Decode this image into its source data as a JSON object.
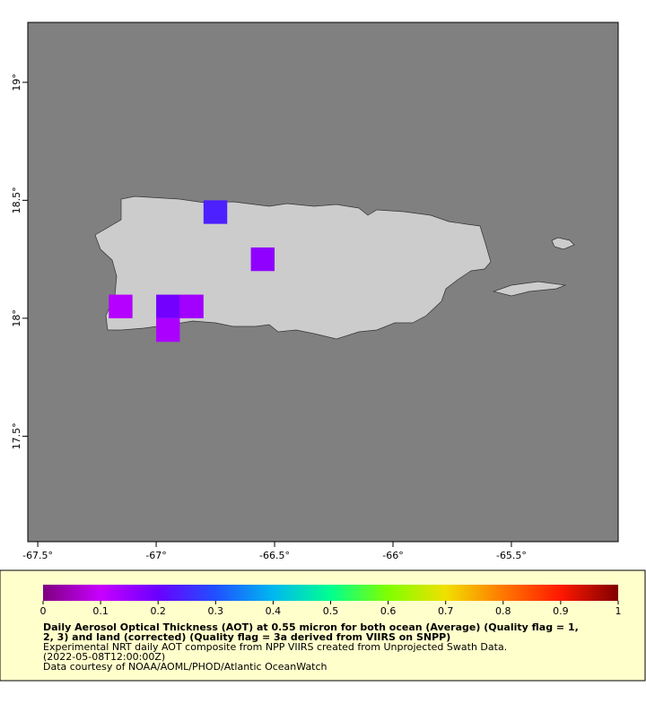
{
  "chart_data": {
    "type": "map",
    "xlim": [
      -67.542,
      -65.049
    ],
    "ylim": [
      17.053,
      19.254
    ],
    "xticks": [
      {
        "value": -67.5,
        "label": "-67.5°"
      },
      {
        "value": -67,
        "label": "-67°"
      },
      {
        "value": -66.5,
        "label": "-66.5°"
      },
      {
        "value": -66,
        "label": "-66°"
      },
      {
        "value": -65.5,
        "label": "-65.5°"
      }
    ],
    "yticks": [
      {
        "value": 17.5,
        "label": "17.5°"
      },
      {
        "value": 18,
        "label": "18°"
      },
      {
        "value": 18.5,
        "label": "18.5°"
      },
      {
        "value": 19,
        "label": "19°"
      }
    ],
    "ocean_color": "#808080",
    "land_color": "#cccccc",
    "cell_size": 0.1,
    "cells": [
      {
        "lon": -66.75,
        "lat": 18.45,
        "value": 0.24
      },
      {
        "lon": -66.55,
        "lat": 18.25,
        "value": 0.16
      },
      {
        "lon": -67.15,
        "lat": 18.05,
        "value": 0.12
      },
      {
        "lon": -66.95,
        "lat": 18.05,
        "value": 0.19
      },
      {
        "lon": -66.85,
        "lat": 18.05,
        "value": 0.14
      },
      {
        "lon": -66.95,
        "lat": 17.95,
        "value": 0.13
      }
    ],
    "colorbar": {
      "lim": [
        0,
        1
      ],
      "ticks": [
        0,
        0.1,
        0.2,
        0.3,
        0.4,
        0.5,
        0.6,
        0.7,
        0.8,
        0.9,
        1
      ],
      "colormap": [
        {
          "value": 0,
          "color": "#7f007f"
        },
        {
          "value": 0.1,
          "color": "#c800ff"
        },
        {
          "value": 0.2,
          "color": "#6a00ff"
        },
        {
          "value": 0.3,
          "color": "#2050ff"
        },
        {
          "value": 0.4,
          "color": "#00b8f0"
        },
        {
          "value": 0.5,
          "color": "#00ff90"
        },
        {
          "value": 0.6,
          "color": "#80ff00"
        },
        {
          "value": 0.7,
          "color": "#f0e000"
        },
        {
          "value": 0.8,
          "color": "#ff7800"
        },
        {
          "value": 0.9,
          "color": "#ff1800"
        },
        {
          "value": 1,
          "color": "#800000"
        }
      ]
    },
    "legend_title_lines": [
      "Daily Aerosol Optical Thickness (AOT) at 0.55 micron for both ocean (Average) (Quality flag = 1,",
      "2, 3) and land (corrected) (Quality flag = 3a derived from VIIRS on SNPP)"
    ],
    "legend_lines": [
      "Experimental NRT daily AOT composite from NPP VIIRS created from Unprojected Swath Data.",
      "(2022-05-08T12:00:00Z)",
      "Data courtesy of NOAA/AOML/PHOD/Atlantic OceanWatch"
    ]
  }
}
